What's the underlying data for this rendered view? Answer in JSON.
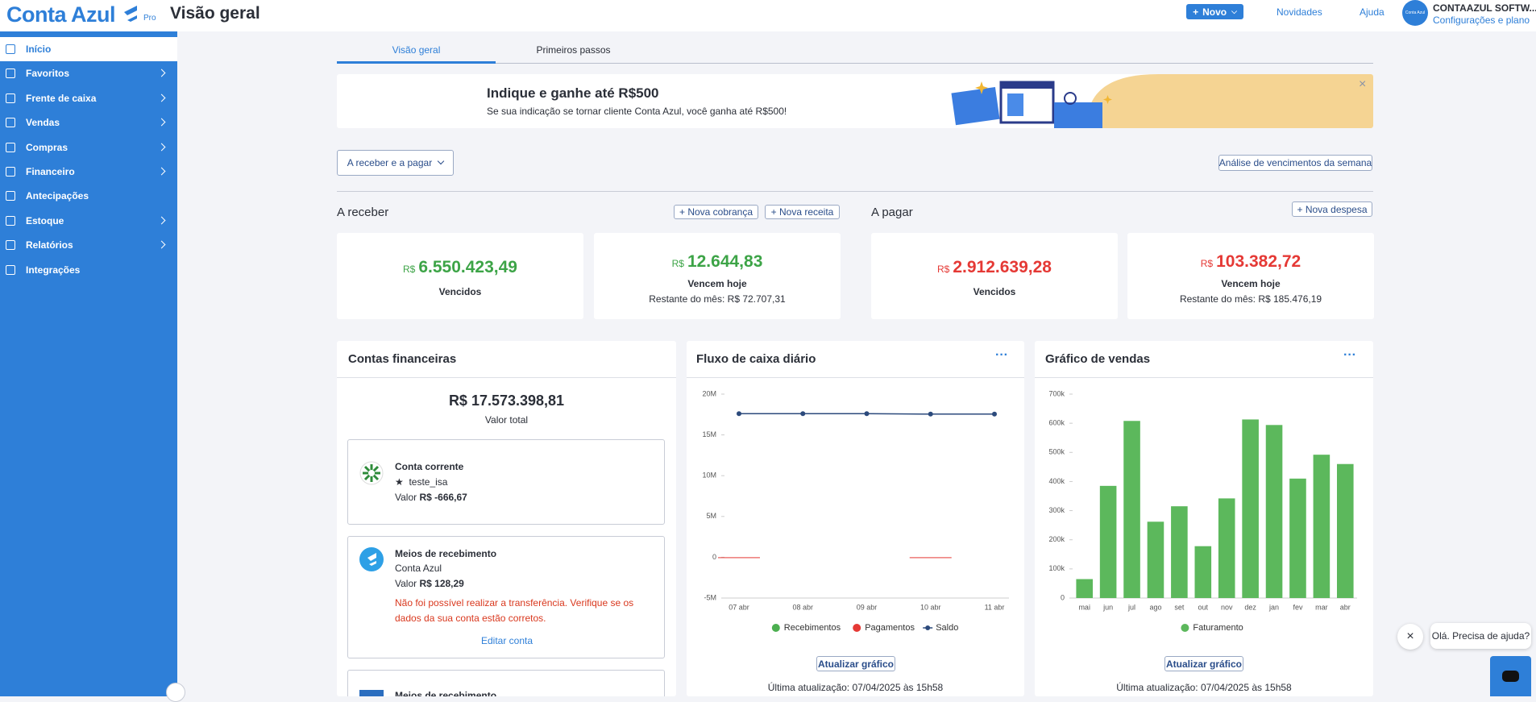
{
  "header": {
    "logo": "Conta Azul",
    "plan": "Pro",
    "title": "Visão geral",
    "new_button": "Novo",
    "news_link": "Novidades",
    "help_link": "Ajuda",
    "avatar": "Conta Azul",
    "company": "CONTAAZUL SOFTW...",
    "settings_link": "Configurações e plano"
  },
  "sidebar": [
    "Início",
    "Favoritos",
    "Frente de caixa",
    "Vendas",
    "Compras",
    "Financeiro",
    "Antecipações",
    "Estoque",
    "Relatórios",
    "Integrações"
  ],
  "tabs": [
    "Visão geral",
    "Primeiros passos"
  ],
  "banner": {
    "title": "Indique e ganhe até R$500",
    "text": "Se sua indicação se tornar cliente Conta Azul, você ganha até R$500!"
  },
  "filter": {
    "period": "A receber e a pagar",
    "analysis": "Análise de vencimentos da semana"
  },
  "receivable": {
    "title": "A receber",
    "actions": [
      "Nova cobrança",
      "Nova receita"
    ],
    "cards": [
      {
        "currency": "R$",
        "amount": "6.550.423,49",
        "label": "Vencidos"
      },
      {
        "currency": "R$",
        "amount": "12.644,83",
        "label": "Vencem hoje",
        "note": "Restante do mês: R$ 72.707,31"
      }
    ]
  },
  "payable": {
    "title": "A pagar",
    "actions": [
      "Nova despesa"
    ],
    "cards": [
      {
        "currency": "R$",
        "amount": "2.912.639,28",
        "label": "Vencidos"
      },
      {
        "currency": "R$",
        "amount": "103.382,72",
        "label": "Vencem hoje",
        "note": "Restante do mês: R$ 185.476,19"
      }
    ]
  },
  "accounts": {
    "title": "Contas financeiras",
    "total": "R$ 17.573.398,81",
    "total_label": "Valor total",
    "items": [
      {
        "name": "Conta corrente",
        "detail": "teste_isa",
        "value_label": "Valor",
        "value": "R$ -666,67"
      },
      {
        "name": "Meios de recebimento",
        "detail": "Conta Azul",
        "value_label": "Valor",
        "value": "R$ 128,29",
        "error": "Não foi possível realizar a transferência. Verifique se os dados da sua conta estão corretos.",
        "link": "Editar conta"
      },
      {
        "name": "Meios de recebimento"
      }
    ]
  },
  "cash_flow": {
    "type": "bar_line",
    "title": "Fluxo de caixa diário",
    "categories": [
      "07 abr",
      "08 abr",
      "09 abr",
      "10 abr",
      "11 abr"
    ],
    "series": [
      {
        "name": "Recebimentos",
        "type": "bar",
        "color": "#4caf50",
        "values": [
          0,
          0,
          0,
          0,
          0
        ]
      },
      {
        "name": "Pagamentos",
        "type": "bar",
        "color": "#e53935",
        "values": [
          -100000,
          0,
          0,
          -100000,
          0
        ]
      },
      {
        "name": "Saldo",
        "type": "line",
        "color": "#2c4a7c",
        "values": [
          17600000,
          17600000,
          17600000,
          17550000,
          17550000
        ]
      }
    ],
    "ylim": [
      -5000000,
      20000000
    ],
    "yticks": [
      {
        "value": -5000000,
        "label": "-5M"
      },
      0,
      {
        "value": 5000000,
        "label": "5M"
      },
      {
        "value": 10000000,
        "label": "10M"
      },
      {
        "value": 15000000,
        "label": "15M"
      },
      {
        "value": 20000000,
        "label": "20M"
      }
    ],
    "button": "Atualizar gráfico",
    "updated": "Última atualização: 07/04/2025 às 15h58"
  },
  "sales": {
    "type": "bar",
    "title": "Gráfico de vendas",
    "categories": [
      "mai",
      "jun",
      "jul",
      "ago",
      "set",
      "out",
      "nov",
      "dez",
      "jan",
      "fev",
      "mar",
      "abr"
    ],
    "series": [
      {
        "name": "Faturamento",
        "type": "bar",
        "color": "#5cb85c",
        "values": [
          65000,
          385000,
          608000,
          262000,
          315000,
          178000,
          342000,
          613000,
          594000,
          410000,
          492000,
          460000
        ]
      }
    ],
    "ylim": [
      0,
      700000
    ],
    "yticks": [
      0,
      {
        "value": 100000,
        "label": "100k"
      },
      {
        "value": 200000,
        "label": "200k"
      },
      {
        "value": 300000,
        "label": "300k"
      },
      {
        "value": 400000,
        "label": "400k"
      },
      {
        "value": 500000,
        "label": "500k"
      },
      {
        "value": 600000,
        "label": "600k"
      },
      {
        "value": 700000,
        "label": "700k"
      }
    ],
    "button": "Atualizar gráfico",
    "updated": "Última atualização: 07/04/2025 às 15h58"
  },
  "chat": {
    "message": "Olá. Precisa de ajuda?"
  }
}
